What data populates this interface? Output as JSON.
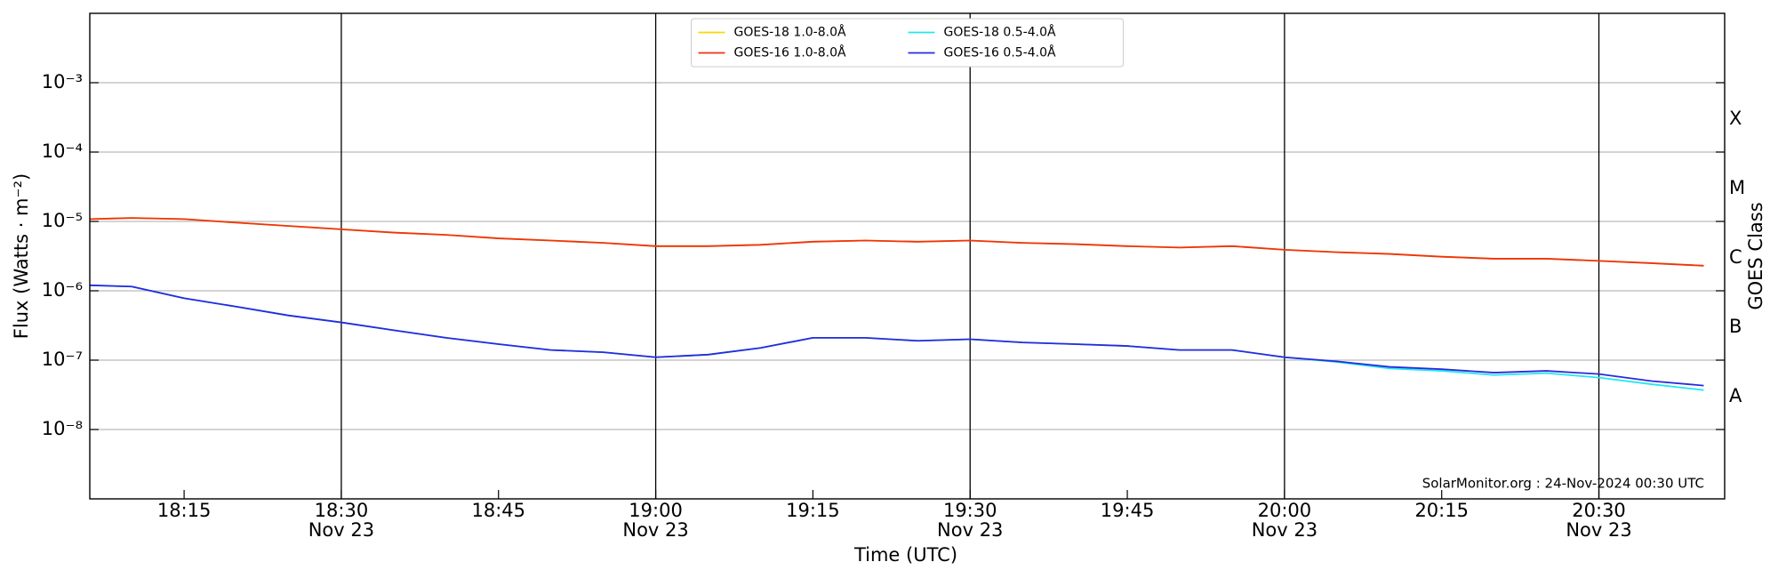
{
  "chart_data": {
    "type": "line",
    "x_label": "Time (UTC)",
    "y_label": "Flux (Watts · m⁻²)",
    "y2_label": "GOES Class",
    "annotation": "SolarMonitor.org : 24-Nov-2024 00:30 UTC",
    "log_y": true,
    "grid": true,
    "legend": "upper center",
    "x": [
      "18:06",
      "18:10",
      "18:15",
      "18:20",
      "18:25",
      "18:30",
      "18:35",
      "18:40",
      "18:45",
      "18:50",
      "18:55",
      "19:00",
      "19:05",
      "19:10",
      "19:15",
      "19:20",
      "19:25",
      "19:30",
      "19:35",
      "19:40",
      "19:45",
      "19:50",
      "19:55",
      "20:00",
      "20:05",
      "20:10",
      "20:15",
      "20:20",
      "20:25",
      "20:30",
      "20:35",
      "20:40"
    ],
    "xlim": [
      "18:06",
      "20:42"
    ],
    "xticks": [
      "18:15",
      {
        "value": "18:30",
        "label": "18:30",
        "date": "Nov 23"
      },
      "18:45",
      {
        "value": "19:00",
        "label": "19:00",
        "date": "Nov 23"
      },
      "19:15",
      {
        "value": "19:30",
        "label": "19:30",
        "date": "Nov 23"
      },
      "19:45",
      {
        "value": "20:00",
        "label": "20:00",
        "date": "Nov 23"
      },
      "20:15",
      {
        "value": "20:30",
        "label": "20:30",
        "date": "Nov 23"
      }
    ],
    "ylim": [
      1e-09,
      0.01
    ],
    "yticks": [
      {
        "value": 1e-08,
        "label": "10⁻⁸"
      },
      {
        "value": 1e-07,
        "label": "10⁻⁷"
      },
      {
        "value": 1e-06,
        "label": "10⁻⁶"
      },
      {
        "value": 1e-05,
        "label": "10⁻⁵"
      },
      {
        "value": 0.0001,
        "label": "10⁻⁴"
      },
      {
        "value": 0.001,
        "label": "10⁻³"
      }
    ],
    "y2lim": [
      1e-09,
      0.01
    ],
    "y2ticks": [
      {
        "value": 3e-08,
        "label": "A"
      },
      {
        "value": 3e-07,
        "label": "B"
      },
      {
        "value": 3e-06,
        "label": "C"
      },
      {
        "value": 3e-05,
        "label": "M"
      },
      {
        "value": 0.0003,
        "label": "X"
      }
    ],
    "series": [
      {
        "name": "GOES-18 1.0-8.0Å",
        "color": "#ffd700",
        "values": [
          1.08e-05,
          1.12e-05,
          1.08e-05,
          9.6e-06,
          8.6e-06,
          7.7e-06,
          6.9e-06,
          6.4e-06,
          5.7e-06,
          5.3e-06,
          4.9e-06,
          4.4e-06,
          4.4e-06,
          4.6e-06,
          5.1e-06,
          5.3e-06,
          5.1e-06,
          5.3e-06,
          4.9e-06,
          4.7e-06,
          4.4e-06,
          4.2e-06,
          4.4e-06,
          3.9e-06,
          3.6e-06,
          3.4e-06,
          3.1e-06,
          2.9e-06,
          2.9e-06,
          2.7e-06,
          2.5e-06,
          2.3e-06
        ]
      },
      {
        "name": "GOES-16 1.0-8.0Å",
        "color": "#ee3311",
        "values": [
          1.08e-05,
          1.12e-05,
          1.08e-05,
          9.6e-06,
          8.6e-06,
          7.7e-06,
          6.9e-06,
          6.4e-06,
          5.7e-06,
          5.3e-06,
          4.9e-06,
          4.4e-06,
          4.4e-06,
          4.6e-06,
          5.1e-06,
          5.3e-06,
          5.1e-06,
          5.3e-06,
          4.9e-06,
          4.7e-06,
          4.4e-06,
          4.2e-06,
          4.4e-06,
          3.9e-06,
          3.6e-06,
          3.4e-06,
          3.1e-06,
          2.9e-06,
          2.9e-06,
          2.7e-06,
          2.5e-06,
          2.3e-06
        ]
      },
      {
        "name": "GOES-18 0.5-4.0Å",
        "color": "#22e8f0",
        "values": [
          1.2e-06,
          1.15e-06,
          7.8e-07,
          5.9e-07,
          4.4e-07,
          3.5e-07,
          2.7e-07,
          2.1e-07,
          1.7e-07,
          1.4e-07,
          1.3e-07,
          1.1e-07,
          1.2e-07,
          1.5e-07,
          2.1e-07,
          2.1e-07,
          1.9e-07,
          2e-07,
          1.8e-07,
          1.7e-07,
          1.6e-07,
          1.4e-07,
          1.4e-07,
          1.1e-07,
          9.4e-08,
          7.6e-08,
          7e-08,
          6.1e-08,
          6.5e-08,
          5.6e-08,
          4.5e-08,
          3.7e-08
        ]
      },
      {
        "name": "GOES-16 0.5-4.0Å",
        "color": "#2a2add",
        "values": [
          1.2e-06,
          1.15e-06,
          7.8e-07,
          5.9e-07,
          4.4e-07,
          3.5e-07,
          2.7e-07,
          2.1e-07,
          1.7e-07,
          1.4e-07,
          1.3e-07,
          1.1e-07,
          1.2e-07,
          1.5e-07,
          2.1e-07,
          2.1e-07,
          1.9e-07,
          2e-07,
          1.8e-07,
          1.7e-07,
          1.6e-07,
          1.4e-07,
          1.4e-07,
          1.1e-07,
          9.6e-08,
          8e-08,
          7.4e-08,
          6.6e-08,
          7e-08,
          6.3e-08,
          5e-08,
          4.3e-08
        ]
      }
    ]
  }
}
